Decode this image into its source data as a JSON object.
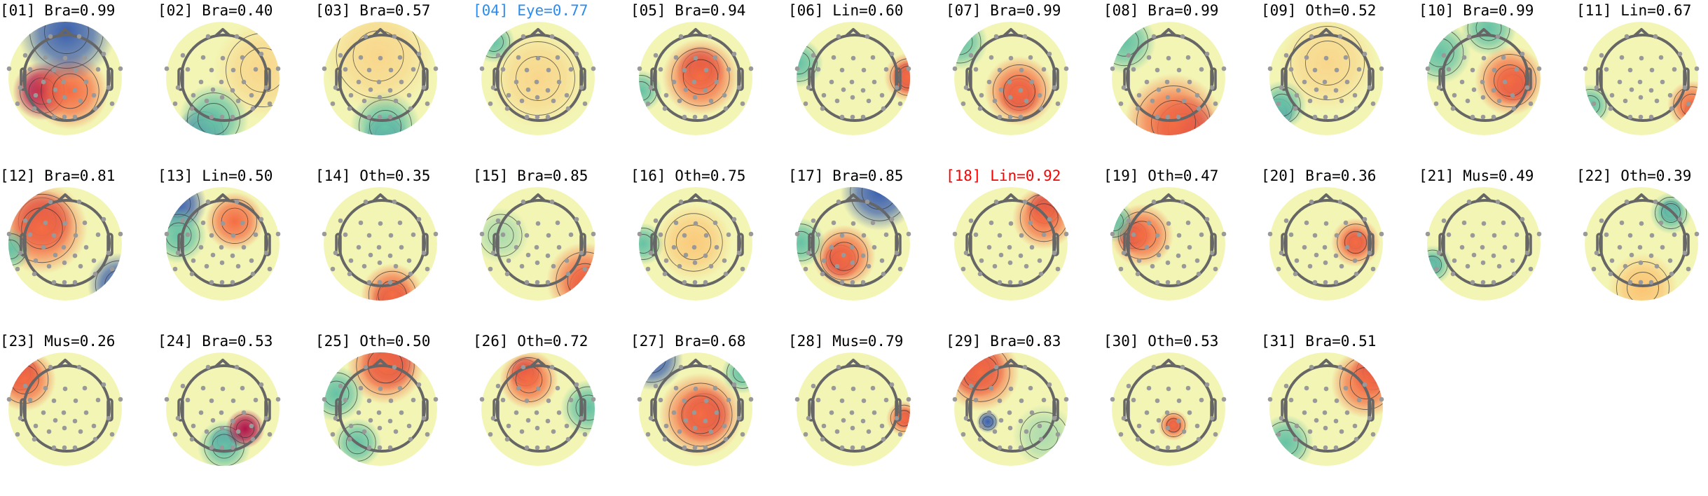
{
  "chart_data": {
    "type": "heatmap",
    "components": [
      {
        "title": "[01] Bra=0.99",
        "index": "01",
        "label": "Bra",
        "prob": 0.99,
        "color": "#000000"
      },
      {
        "title": "[02] Bra=0.40",
        "index": "02",
        "label": "Bra",
        "prob": 0.4,
        "color": "#000000"
      },
      {
        "title": "[03] Bra=0.57",
        "index": "03",
        "label": "Bra",
        "prob": 0.57,
        "color": "#000000"
      },
      {
        "title": "[04] Eye=0.77",
        "index": "04",
        "label": "Eye",
        "prob": 0.77,
        "color": "#2b8cf0"
      },
      {
        "title": "[05] Bra=0.94",
        "index": "05",
        "label": "Bra",
        "prob": 0.94,
        "color": "#000000"
      },
      {
        "title": "[06] Lin=0.60",
        "index": "06",
        "label": "Lin",
        "prob": 0.6,
        "color": "#000000"
      },
      {
        "title": "[07] Bra=0.99",
        "index": "07",
        "label": "Bra",
        "prob": 0.99,
        "color": "#000000"
      },
      {
        "title": "[08] Bra=0.99",
        "index": "08",
        "label": "Bra",
        "prob": 0.99,
        "color": "#000000"
      },
      {
        "title": "[09] Oth=0.52",
        "index": "09",
        "label": "Oth",
        "prob": 0.52,
        "color": "#000000"
      },
      {
        "title": "[10] Bra=0.99",
        "index": "10",
        "label": "Bra",
        "prob": 0.99,
        "color": "#000000"
      },
      {
        "title": "[11] Lin=0.67",
        "index": "11",
        "label": "Lin",
        "prob": 0.67,
        "color": "#000000"
      },
      {
        "title": "[12] Bra=0.81",
        "index": "12",
        "label": "Bra",
        "prob": 0.81,
        "color": "#000000"
      },
      {
        "title": "[13] Lin=0.50",
        "index": "13",
        "label": "Lin",
        "prob": 0.5,
        "color": "#000000"
      },
      {
        "title": "[14] Oth=0.35",
        "index": "14",
        "label": "Oth",
        "prob": 0.35,
        "color": "#000000"
      },
      {
        "title": "[15] Bra=0.85",
        "index": "15",
        "label": "Bra",
        "prob": 0.85,
        "color": "#000000"
      },
      {
        "title": "[16] Oth=0.75",
        "index": "16",
        "label": "Oth",
        "prob": 0.75,
        "color": "#000000"
      },
      {
        "title": "[17] Bra=0.85",
        "index": "17",
        "label": "Bra",
        "prob": 0.85,
        "color": "#000000"
      },
      {
        "title": "[18] Lin=0.92",
        "index": "18",
        "label": "Lin",
        "prob": 0.92,
        "color": "#ff0000"
      },
      {
        "title": "[19] Oth=0.47",
        "index": "19",
        "label": "Oth",
        "prob": 0.47,
        "color": "#000000"
      },
      {
        "title": "[20] Bra=0.36",
        "index": "20",
        "label": "Bra",
        "prob": 0.36,
        "color": "#000000"
      },
      {
        "title": "[21] Mus=0.49",
        "index": "21",
        "label": "Mus",
        "prob": 0.49,
        "color": "#000000"
      },
      {
        "title": "[22] Oth=0.39",
        "index": "22",
        "label": "Oth",
        "prob": 0.39,
        "color": "#000000"
      },
      {
        "title": "[23] Mus=0.26",
        "index": "23",
        "label": "Mus",
        "prob": 0.26,
        "color": "#000000"
      },
      {
        "title": "[24] Bra=0.53",
        "index": "24",
        "label": "Bra",
        "prob": 0.53,
        "color": "#000000"
      },
      {
        "title": "[25] Oth=0.50",
        "index": "25",
        "label": "Oth",
        "prob": 0.5,
        "color": "#000000"
      },
      {
        "title": "[26] Oth=0.72",
        "index": "26",
        "label": "Oth",
        "prob": 0.72,
        "color": "#000000"
      },
      {
        "title": "[27] Bra=0.68",
        "index": "27",
        "label": "Bra",
        "prob": 0.68,
        "color": "#000000"
      },
      {
        "title": "[28] Mus=0.79",
        "index": "28",
        "label": "Mus",
        "prob": 0.79,
        "color": "#000000"
      },
      {
        "title": "[29] Bra=0.83",
        "index": "29",
        "label": "Bra",
        "prob": 0.83,
        "color": "#000000"
      },
      {
        "title": "[30] Oth=0.53",
        "index": "30",
        "label": "Oth",
        "prob": 0.53,
        "color": "#000000"
      },
      {
        "title": "[31] Bra=0.51",
        "index": "31",
        "label": "Bra",
        "prob": 0.51,
        "color": "#000000"
      }
    ],
    "colormap": [
      "#3a5fb0",
      "#66c2a5",
      "#fefebd",
      "#f46d43",
      "#b0134a"
    ],
    "head_color": "#666666",
    "sensor_color": "#999999"
  }
}
